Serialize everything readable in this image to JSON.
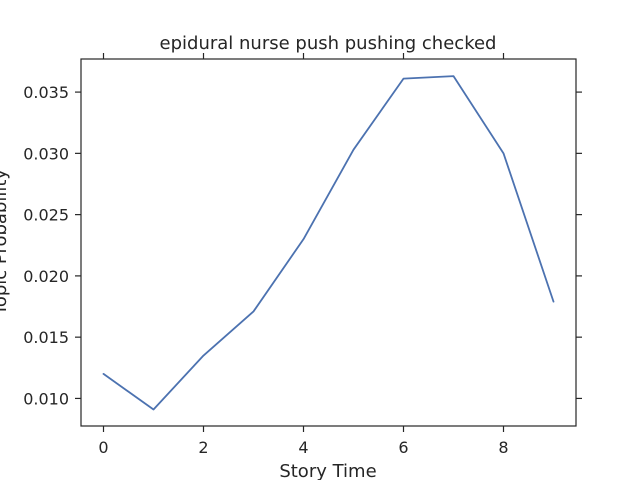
{
  "chart_data": {
    "type": "line",
    "title": "epidural nurse push pushing checked",
    "xlabel": "Story Time",
    "ylabel": "Topic Probability",
    "x": [
      0,
      1,
      2,
      3,
      4,
      5,
      6,
      7,
      8,
      9
    ],
    "series": [
      {
        "values": [
          0.012,
          0.0091,
          0.0135,
          0.0171,
          0.023,
          0.0303,
          0.0361,
          0.0363,
          0.03,
          0.0179
        ]
      }
    ],
    "xlim": [
      -0.45,
      9.45
    ],
    "ylim": [
      0.00775,
      0.0377
    ],
    "xticks": [
      0,
      2,
      4,
      6,
      8
    ],
    "xtick_labels": [
      "0",
      "2",
      "4",
      "6",
      "8"
    ],
    "yticks": [
      0.01,
      0.015,
      0.02,
      0.025,
      0.03,
      0.035
    ],
    "ytick_labels": [
      "0.010",
      "0.015",
      "0.020",
      "0.025",
      "0.030",
      "0.035"
    ],
    "grid": false,
    "line_color": "#4c72b0",
    "ticks_mirrored": true
  }
}
